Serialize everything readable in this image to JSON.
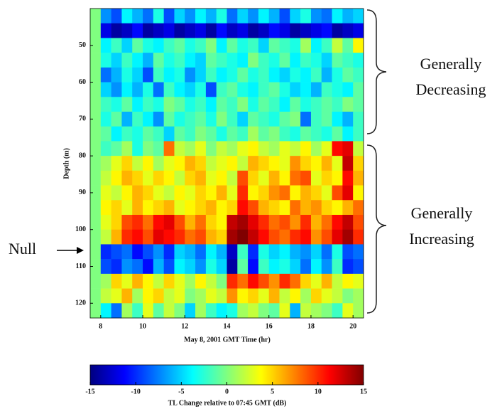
{
  "chart_data": {
    "type": "heatmap",
    "colormap": "jet",
    "xlabel": "May 8, 2001 GMT Time (hr)",
    "ylabel": "Depth (m)",
    "xbins": [
      7.5,
      8,
      8.5,
      9,
      9.5,
      10,
      10.5,
      11,
      11.5,
      12,
      12.5,
      13,
      13.5,
      14,
      14.5,
      15,
      15.5,
      16,
      16.5,
      17,
      17.5,
      18,
      18.5,
      19,
      19.5,
      20,
      20.5
    ],
    "ybins": [
      40,
      44,
      48,
      52,
      56,
      60,
      64,
      68,
      72,
      76,
      80,
      84,
      88,
      92,
      96,
      100,
      104,
      108,
      112,
      116,
      120,
      124
    ],
    "xlim": [
      7.5,
      20.5
    ],
    "ylim": [
      40,
      124
    ],
    "y_inverted": true,
    "xticks": [
      8,
      10,
      12,
      14,
      16,
      18,
      20
    ],
    "yticks": [
      50,
      60,
      70,
      80,
      90,
      100,
      110,
      120
    ],
    "z": [
      [
        0,
        -7,
        -9,
        -4,
        -6,
        -8,
        -3,
        -9,
        -5,
        -7,
        -4,
        -6,
        -3,
        -8,
        -5,
        -7,
        -4,
        -6,
        -9,
        -5,
        -3,
        -7,
        -8,
        -4,
        -6,
        -5
      ],
      [
        0,
        -12,
        -14,
        -13,
        -11,
        -14,
        -13,
        -12,
        -14,
        -13,
        -12,
        -14,
        -11,
        -13,
        -12,
        -14,
        -13,
        -11,
        -12,
        -14,
        -13,
        -12,
        -11,
        -14,
        -13,
        -12
      ],
      [
        0,
        -4,
        -2,
        -5,
        -1,
        -3,
        -4,
        -2,
        -1,
        -3,
        -2,
        0,
        -4,
        -1,
        -3,
        -2,
        -5,
        -1,
        -2,
        -3,
        1,
        -4,
        -2,
        2,
        -1,
        4
      ],
      [
        0,
        -3,
        -5,
        -2,
        -4,
        -6,
        -1,
        -3,
        -2,
        -4,
        -5,
        -1,
        -2,
        -3,
        -4,
        0,
        -2,
        -3,
        -1,
        -4,
        -2,
        -3,
        -5,
        -1,
        -2,
        -3
      ],
      [
        0,
        -8,
        -6,
        -3,
        -5,
        -9,
        -2,
        -4,
        -3,
        -7,
        -5,
        -2,
        -4,
        -3,
        -1,
        -3,
        -2,
        -4,
        -5,
        -3,
        -4,
        -2,
        -6,
        -3,
        -1,
        -2
      ],
      [
        0,
        -5,
        -7,
        -4,
        -6,
        -3,
        -8,
        -2,
        -4,
        -5,
        -3,
        -9,
        -2,
        -1,
        -3,
        -4,
        -2,
        -1,
        -3,
        -5,
        -4,
        -6,
        -2,
        -3,
        -4,
        -1
      ],
      [
        0,
        -2,
        -3,
        -1,
        -4,
        -2,
        -3,
        0,
        -1,
        -3,
        -2,
        -4,
        -1,
        -2,
        0,
        -3,
        -1,
        -2,
        -4,
        -1,
        -3,
        -2,
        -1,
        -2,
        0,
        -1
      ],
      [
        0,
        -3,
        -1,
        -6,
        -2,
        -4,
        -7,
        -1,
        -3,
        -2,
        -1,
        -3,
        0,
        -2,
        -5,
        -1,
        -2,
        -3,
        -1,
        0,
        -8,
        -2,
        -1,
        -4,
        -6,
        -2
      ],
      [
        0,
        -1,
        -4,
        -2,
        -3,
        -1,
        -2,
        -5,
        -1,
        -2,
        0,
        -1,
        -3,
        -1,
        -2,
        1,
        -1,
        0,
        -2,
        -3,
        -1,
        -2,
        -3,
        -1,
        -4,
        -2
      ],
      [
        0,
        -2,
        -1,
        1,
        -3,
        0,
        -1,
        8,
        2,
        1,
        3,
        0,
        2,
        1,
        3,
        4,
        2,
        1,
        3,
        2,
        4,
        1,
        3,
        11,
        12,
        2
      ],
      [
        0,
        1,
        3,
        5,
        2,
        4,
        1,
        3,
        4,
        6,
        5,
        2,
        3,
        4,
        2,
        6,
        5,
        4,
        3,
        7,
        5,
        4,
        6,
        3,
        13,
        5
      ],
      [
        0,
        2,
        4,
        6,
        5,
        3,
        5,
        4,
        2,
        5,
        6,
        3,
        4,
        2,
        9,
        5,
        3,
        6,
        4,
        8,
        9,
        3,
        5,
        4,
        11,
        6
      ],
      [
        0,
        3,
        2,
        4,
        6,
        5,
        3,
        2,
        4,
        3,
        5,
        4,
        6,
        3,
        10,
        4,
        5,
        7,
        8,
        4,
        6,
        5,
        3,
        9,
        12,
        4
      ],
      [
        0,
        4,
        5,
        3,
        6,
        4,
        5,
        6,
        3,
        4,
        5,
        6,
        4,
        5,
        11,
        9,
        6,
        5,
        4,
        8,
        6,
        7,
        5,
        4,
        6,
        8
      ],
      [
        0,
        3,
        5,
        9,
        10,
        8,
        11,
        12,
        9,
        6,
        8,
        5,
        4,
        13,
        14,
        12,
        10,
        8,
        9,
        7,
        10,
        6,
        8,
        11,
        13,
        9
      ],
      [
        0,
        2,
        6,
        10,
        11,
        9,
        12,
        11,
        10,
        8,
        9,
        6,
        5,
        14,
        15,
        13,
        11,
        9,
        8,
        10,
        11,
        7,
        9,
        12,
        14,
        10
      ],
      [
        0,
        -10,
        -9,
        -8,
        -11,
        -9,
        -7,
        -10,
        -5,
        -6,
        -8,
        -4,
        -6,
        -13,
        -2,
        -10,
        -3,
        -5,
        -4,
        -6,
        -7,
        -5,
        -8,
        -3,
        -9,
        -8
      ],
      [
        0,
        -9,
        -10,
        -7,
        -8,
        -11,
        -6,
        -9,
        -4,
        -5,
        -7,
        -3,
        -5,
        -14,
        -1,
        -11,
        -2,
        -4,
        -3,
        -5,
        -8,
        -4,
        -7,
        -2,
        -10,
        -9
      ],
      [
        0,
        1,
        5,
        3,
        6,
        4,
        2,
        5,
        3,
        1,
        4,
        2,
        0,
        10,
        8,
        11,
        9,
        7,
        10,
        8,
        5,
        3,
        6,
        2,
        4,
        3
      ],
      [
        0,
        2,
        3,
        6,
        1,
        4,
        5,
        2,
        3,
        0,
        1,
        3,
        2,
        7,
        4,
        5,
        3,
        6,
        2,
        4,
        1,
        5,
        3,
        2,
        0,
        1
      ],
      [
        0,
        -4,
        -8,
        1,
        -2,
        3,
        -1,
        2,
        0,
        -5,
        1,
        -2,
        -4,
        -3,
        1,
        2,
        0,
        -1,
        3,
        -6,
        2,
        1,
        0,
        -2,
        3,
        1
      ]
    ],
    "colorbar": {
      "lim": [
        -15,
        15
      ],
      "ticks": [
        -15,
        -10,
        -5,
        0,
        5,
        10,
        15
      ],
      "label": "TL Change relative to 07:45 GMT (dB)"
    },
    "annotations": [
      {
        "lines": [
          "Generally",
          "Decreasing"
        ]
      },
      {
        "lines": [
          "Generally",
          "Increasing"
        ]
      },
      {
        "lines": [
          "Null"
        ]
      }
    ]
  }
}
